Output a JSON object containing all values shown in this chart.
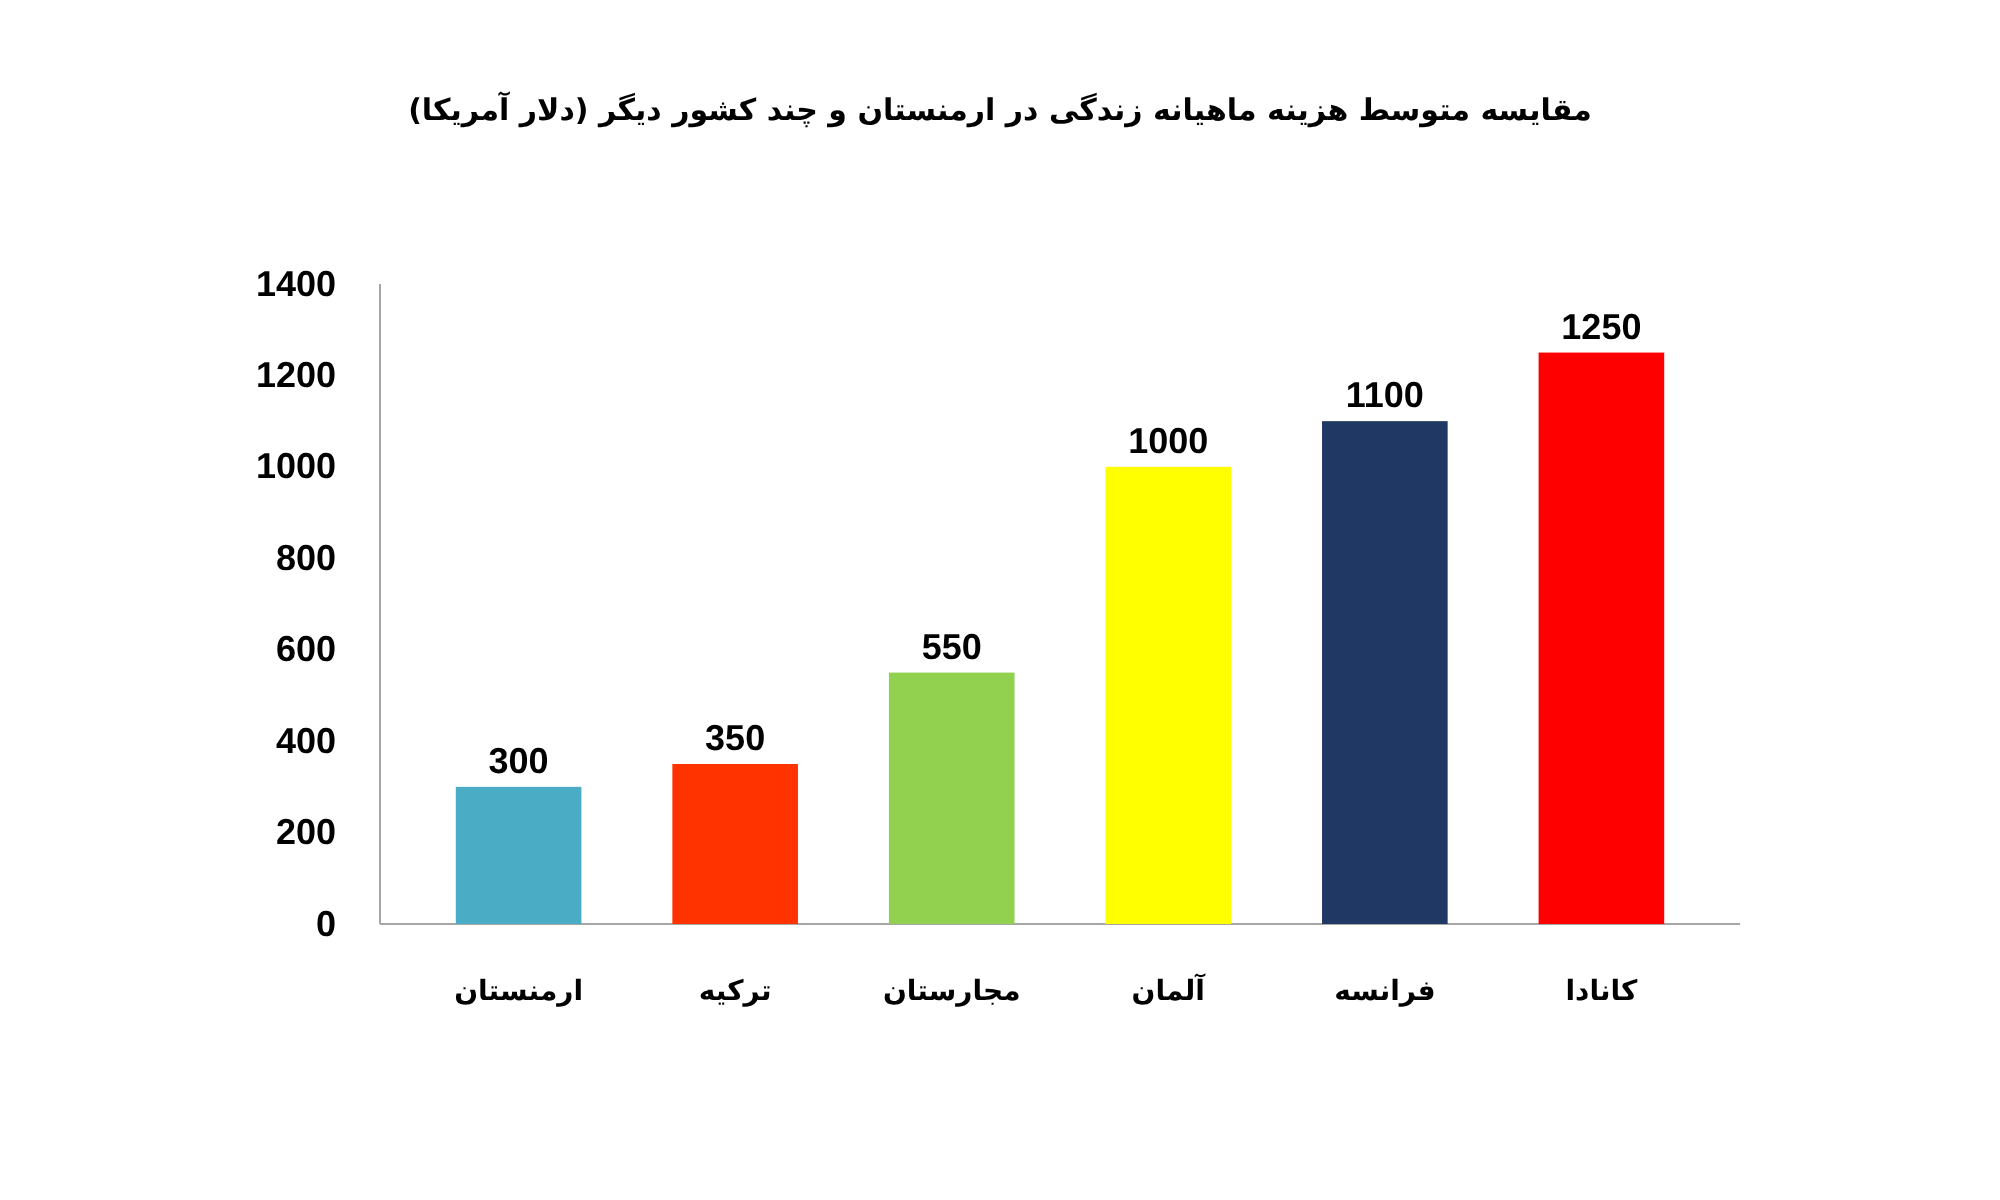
{
  "chart_data": {
    "type": "bar",
    "title": "مقایسه متوسط هزینه ماهیانه زندگی در ارمنستان و چند کشور دیگر (دلار آمریکا)",
    "categories": [
      "ارمنستان",
      "ترکیه",
      "مجارستان",
      "آلمان",
      "فرانسه",
      "کانادا"
    ],
    "values": [
      300,
      350,
      550,
      1000,
      1100,
      1250
    ],
    "colors": [
      "#4bacc6",
      "#ff3300",
      "#92d050",
      "#ffff00",
      "#1f3864",
      "#ff0000"
    ],
    "ylim": [
      0,
      1400
    ],
    "yticks": [
      0,
      200,
      400,
      600,
      800,
      1000,
      1200,
      1400
    ],
    "grid": false,
    "data_labels": true
  }
}
